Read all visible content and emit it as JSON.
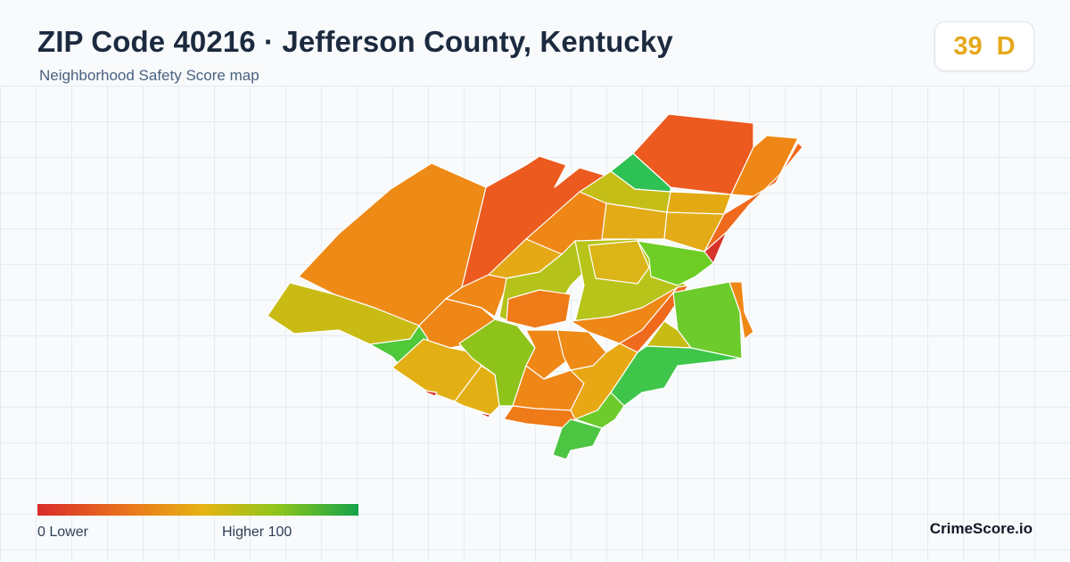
{
  "header": {
    "title": "ZIP Code 40216 · Jefferson County, Kentucky",
    "subtitle": "Neighborhood Safety Score map"
  },
  "score": {
    "value": "39",
    "grade": "D",
    "color": "#e5a81a"
  },
  "legend": {
    "low_label": "0  Lower",
    "high_label": "Higher  100",
    "low_value": 0,
    "high_value": 100,
    "colors": [
      "#d92b2b",
      "#ea7a1a",
      "#e6b412",
      "#8cc51a",
      "#16a34a"
    ]
  },
  "brand": "CrimeScore.io"
}
